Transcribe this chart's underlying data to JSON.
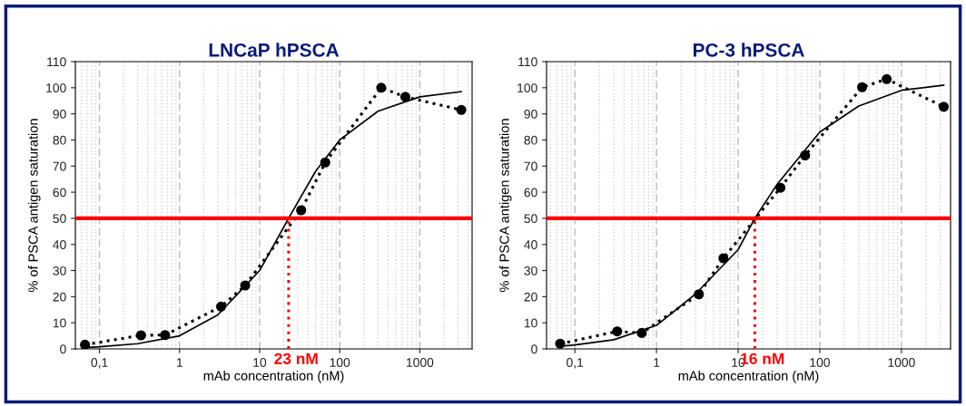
{
  "chart_data": [
    {
      "type": "line",
      "title": "LNCaP hPSCA",
      "xlabel": "mAb concentration (nM)",
      "ylabel": "% of PSCA antigen saturation",
      "log": "x",
      "grid": "x",
      "xlim": [
        0.05,
        4500
      ],
      "xticks": [
        {
          "value": 0.1,
          "label": "0,1"
        },
        1,
        10,
        100,
        1000
      ],
      "ylim": [
        0,
        110
      ],
      "yticks": [
        0,
        10,
        20,
        30,
        40,
        50,
        60,
        70,
        80,
        90,
        100,
        110
      ],
      "series": [
        {
          "color": "#000000",
          "marker": "circle",
          "line_style": "dotted",
          "x": [
            0.066,
            0.33,
            0.66,
            3.3,
            6.6,
            33,
            66,
            330,
            660,
            3300
          ],
          "values": [
            1.6,
            5.2,
            5.3,
            16.2,
            24.3,
            53.1,
            71.4,
            100,
            96.5,
            91.5
          ]
        },
        {
          "color": "#000000",
          "marker": "none",
          "line_style": "solid",
          "x": [
            0.066,
            0.1,
            0.3,
            1,
            3,
            10,
            23,
            50,
            100,
            300,
            1000,
            3300
          ],
          "values": [
            0.5,
            0.8,
            2,
            5,
            13,
            30,
            50,
            68,
            80,
            91,
            96.5,
            98.5
          ]
        },
        {
          "color": "#ff0000",
          "marker": "none",
          "line_style": "dotted",
          "x": [
            23,
            23
          ],
          "values": [
            0,
            50
          ]
        }
      ],
      "ref_lines": [
        {
          "axis": "y",
          "value": 50,
          "color": "#ff0000",
          "line_style": "solid"
        }
      ],
      "annotations": [
        {
          "text": "23 nM",
          "x": 23,
          "y": 0
        }
      ]
    },
    {
      "type": "line",
      "title": "PC-3 hPSCA",
      "xlabel": "mAb concentration (nM)",
      "ylabel": "% of PSCA antigen saturation",
      "log": "x",
      "grid": "x",
      "xlim": [
        0.045,
        4000
      ],
      "xticks": [
        {
          "value": 0.1,
          "label": "0,1"
        },
        1,
        10,
        100,
        1000
      ],
      "ylim": [
        0,
        110
      ],
      "yticks": [
        0,
        10,
        20,
        30,
        40,
        50,
        60,
        70,
        80,
        90,
        100,
        110
      ],
      "series": [
        {
          "color": "#000000",
          "marker": "circle",
          "line_style": "dotted",
          "x": [
            0.066,
            0.33,
            0.66,
            3.3,
            6.6,
            33,
            66,
            330,
            660,
            3300
          ],
          "values": [
            2.0,
            6.7,
            6.1,
            20.9,
            34.7,
            61.7,
            74.1,
            100.2,
            103.3,
            92.7
          ]
        },
        {
          "color": "#000000",
          "marker": "none",
          "line_style": "solid",
          "x": [
            0.066,
            0.1,
            0.3,
            1,
            3,
            10,
            16,
            30,
            100,
            300,
            1000,
            3300
          ],
          "values": [
            1,
            1.5,
            3.5,
            9,
            21,
            38,
            50,
            63,
            83,
            93,
            99,
            101
          ]
        },
        {
          "color": "#ff0000",
          "marker": "none",
          "line_style": "dotted",
          "x": [
            16,
            16
          ],
          "values": [
            0,
            50
          ]
        }
      ],
      "ref_lines": [
        {
          "axis": "y",
          "value": 50,
          "color": "#ff0000",
          "line_style": "solid"
        }
      ],
      "annotations": [
        {
          "text": "16 nM",
          "x": 16,
          "y": 0
        }
      ]
    }
  ]
}
